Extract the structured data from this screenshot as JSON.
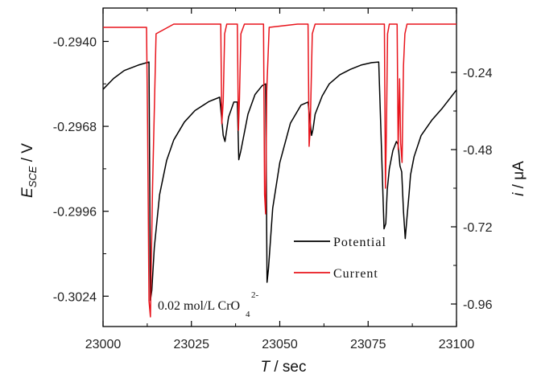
{
  "chart_data": {
    "type": "line",
    "xlabel_main": "T",
    "xlabel_unit": " / sec",
    "ylabel_left_main": "E",
    "ylabel_left_sub": "SCE",
    "ylabel_left_unit": " / V",
    "ylabel_right_main": "i",
    "ylabel_right_unit": " / μA",
    "x_ticks": [
      "23000",
      "23025",
      "23050",
      "23075",
      "23100"
    ],
    "y_left_ticks": [
      "-0.2940",
      "-0.2968",
      "-0.2996",
      "-0.3024"
    ],
    "y_right_ticks": [
      "-0.24",
      "-0.48",
      "-0.72",
      "-0.96"
    ],
    "xlim": [
      23000,
      23100
    ],
    "ylim_left": [
      -0.3034,
      -0.2929
    ],
    "ylim_right": [
      -1.03,
      -0.04
    ],
    "grid": false,
    "legend_position": "lower-right",
    "annotation": {
      "text": "0.02 mol/L CrO",
      "subscript": "4",
      "superscript": "2-"
    },
    "series": [
      {
        "name": "Potential",
        "color": "#000000",
        "axis": "left",
        "x": [
          23000,
          23003,
          23006,
          23010,
          23013,
          23013.4,
          23013.8,
          23014.5,
          23016,
          23018,
          23020,
          23023,
          23026,
          23030,
          23033,
          23034,
          23034.5,
          23035,
          23035.5,
          23037,
          23038,
          23038.4,
          23039,
          23040,
          23041,
          23043,
          23045,
          23046,
          23046.4,
          23046.8,
          23048,
          23050,
          23053,
          23056,
          23058,
          23059,
          23059.4,
          23060,
          23062,
          23064,
          23067,
          23070,
          23073,
          23076,
          23078,
          23079.5,
          23080,
          23080.4,
          23081,
          23082,
          23083,
          23083.5,
          23084,
          23084.5,
          23085,
          23085.5,
          23086,
          23086.6,
          23087,
          23088,
          23090,
          23093,
          23096,
          23100
        ],
        "y": [
          -0.29558,
          -0.29522,
          -0.29496,
          -0.29478,
          -0.29468,
          -0.30254,
          -0.3022,
          -0.3008,
          -0.29905,
          -0.29792,
          -0.29725,
          -0.29666,
          -0.29628,
          -0.29598,
          -0.29584,
          -0.2971,
          -0.2973,
          -0.2969,
          -0.2965,
          -0.296,
          -0.296,
          -0.2979,
          -0.2976,
          -0.297,
          -0.2964,
          -0.29575,
          -0.29546,
          -0.2954,
          -0.30194,
          -0.3015,
          -0.2995,
          -0.298,
          -0.2967,
          -0.2961,
          -0.296,
          -0.2971,
          -0.2969,
          -0.2964,
          -0.2958,
          -0.2954,
          -0.2951,
          -0.29492,
          -0.29478,
          -0.2947,
          -0.29468,
          -0.30018,
          -0.3,
          -0.2989,
          -0.2982,
          -0.2976,
          -0.2973,
          -0.2974,
          -0.2981,
          -0.2983,
          -0.2996,
          -0.3005,
          -0.2998,
          -0.299,
          -0.2984,
          -0.2978,
          -0.2971,
          -0.2966,
          -0.2962,
          -0.2956
        ]
      },
      {
        "name": "Current",
        "color": "#e8141c",
        "axis": "right",
        "x": [
          23000,
          23012.3,
          23012.6,
          23013.0,
          23013.4,
          23014.0,
          23015,
          23020,
          23033.3,
          23033.6,
          23034.0,
          23034.4,
          23035,
          23038.0,
          23038.3,
          23038.6,
          23039.0,
          23040,
          23045.4,
          23045.7,
          23046.0,
          23046.3,
          23047,
          23055,
          23058.0,
          23058.3,
          23058.6,
          23059.2,
          23060,
          23070,
          23079.6,
          23079.9,
          23080.2,
          23080.5,
          23081,
          23083.2,
          23083.5,
          23083.9,
          23084.2,
          23084.6,
          23085.0,
          23085.4,
          23086,
          23090,
          23100
        ],
        "y": [
          -0.1,
          -0.1,
          -0.4,
          -0.95,
          -1.0,
          -0.6,
          -0.12,
          -0.09,
          -0.09,
          -0.4,
          -0.33,
          -0.12,
          -0.09,
          -0.09,
          -0.42,
          -0.32,
          -0.12,
          -0.09,
          -0.09,
          -0.62,
          -0.68,
          -0.3,
          -0.1,
          -0.09,
          -0.09,
          -0.47,
          -0.42,
          -0.12,
          -0.09,
          -0.09,
          -0.09,
          -0.6,
          -0.4,
          -0.12,
          -0.09,
          -0.09,
          -0.48,
          -0.26,
          -0.46,
          -0.52,
          -0.22,
          -0.12,
          -0.09,
          -0.09,
          -0.09
        ]
      }
    ]
  }
}
